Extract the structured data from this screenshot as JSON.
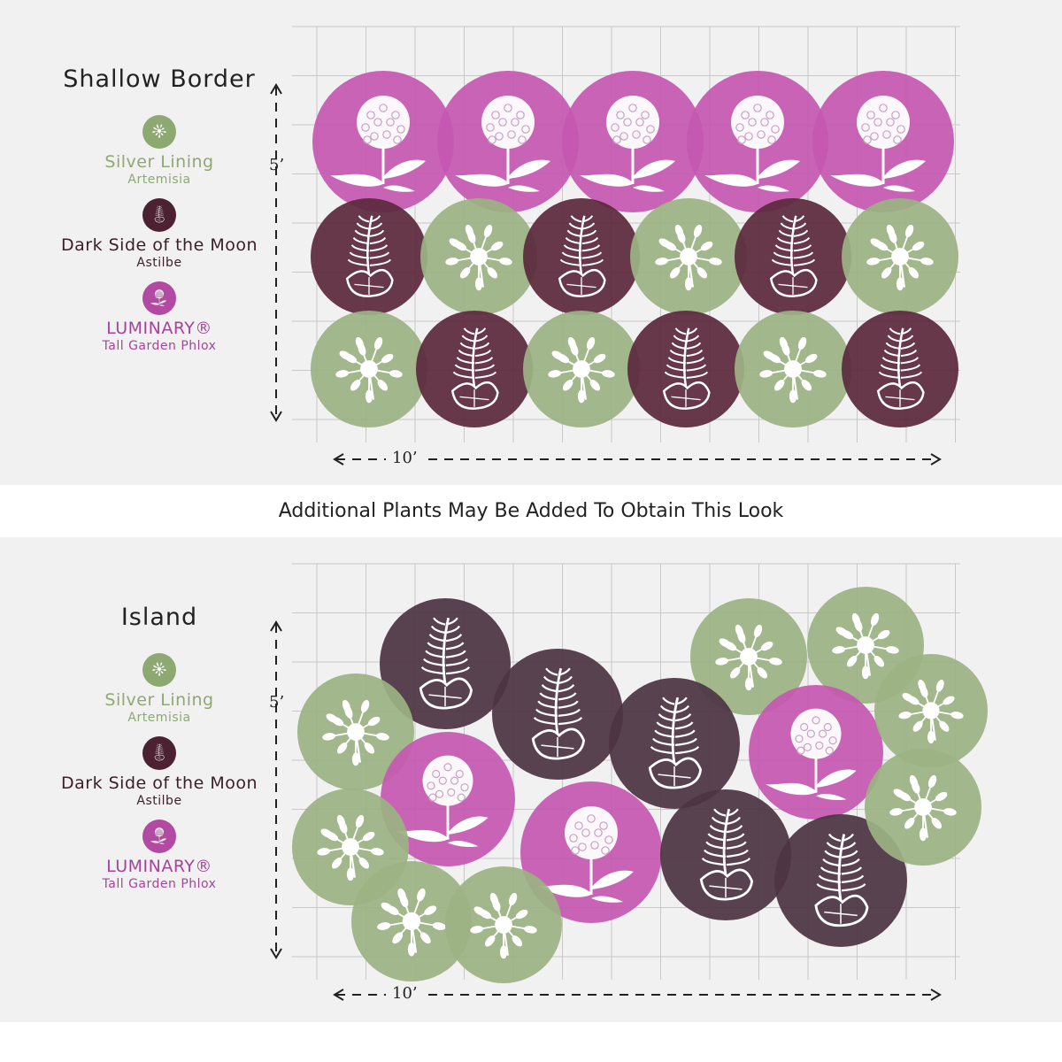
{
  "banner": "Additional Plants May Be Added To Obtain This Look",
  "colors": {
    "silver": "#9cb383",
    "astilbe_dark": "#5b2a3d",
    "astilbe_island": "#4e3544",
    "phlox": "#c558b0",
    "grid": "#c8c8c8",
    "panel_bg": "#f1f1f1"
  },
  "legend": [
    {
      "name": "Silver Lining",
      "sub": "Artemisia",
      "color": "#8ea872",
      "icon": "leaf-icon"
    },
    {
      "name": "Dark Side of the Moon",
      "sub": "Astilbe",
      "color": "#4c2132",
      "icon": "fern-icon"
    },
    {
      "name": "LUMINARY®",
      "sub": "Tall Garden Phlox",
      "color": "#b24aa1",
      "icon": "flower-icon"
    }
  ],
  "layouts": [
    {
      "title": "Shallow Border",
      "height_label": "5’",
      "width_label": "10’",
      "plants": [
        "phlox",
        "phlox",
        "phlox",
        "phlox",
        "phlox",
        "astilbe",
        "artemisia",
        "astilbe",
        "artemisia",
        "astilbe",
        "artemisia",
        "artemisia",
        "astilbe",
        "artemisia",
        "astilbe",
        "artemisia",
        "astilbe"
      ]
    },
    {
      "title": "Island",
      "height_label": "5’",
      "width_label": "10’",
      "plants": [
        "astilbe",
        "artemisia",
        "artemisia",
        "artemisia",
        "astilbe",
        "astilbe",
        "phlox",
        "artemisia",
        "phlox",
        "phlox",
        "astilbe",
        "astilbe",
        "artemisia",
        "artemisia",
        "artemisia",
        "artemisia"
      ]
    }
  ]
}
